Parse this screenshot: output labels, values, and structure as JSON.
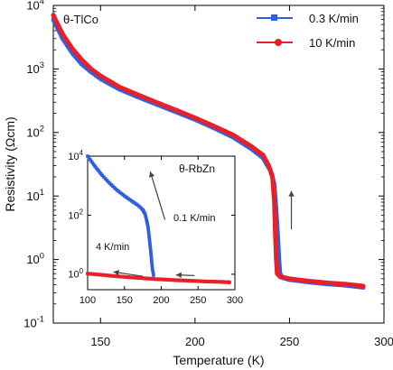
{
  "chart_data": [
    {
      "type": "scatter",
      "title": "θ-TlCo",
      "xlabel": "Temperature (K)",
      "ylabel": "Resistivity (Ωcm)",
      "xlim": [
        125,
        300
      ],
      "ylim": [
        0.1,
        10000
      ],
      "y_scale": "log",
      "grid": false,
      "legend_position": "top-right",
      "x_ticks": [
        150,
        200,
        250,
        300
      ],
      "x_tick_labels": [
        "150",
        "200",
        "250",
        "300"
      ],
      "y_ticks": [
        0.1,
        1,
        10,
        100,
        1000,
        10000
      ],
      "y_tick_labels": [
        {
          "base": "10",
          "exp": "-1"
        },
        {
          "base": "10",
          "exp": "0"
        },
        {
          "base": "10",
          "exp": "1"
        },
        {
          "base": "10",
          "exp": "2"
        },
        {
          "base": "10",
          "exp": "3"
        },
        {
          "base": "10",
          "exp": "4"
        }
      ],
      "annotations": [
        {
          "type": "arrow",
          "direction": "up",
          "from": [
            251,
            3
          ],
          "to": [
            251,
            12
          ]
        }
      ],
      "series": [
        {
          "name": "0.3 K/min",
          "color": "#2f5fe0",
          "marker": "square",
          "points": [
            [
              125,
              6000
            ],
            [
              130,
              3000
            ],
            [
              135,
              1800
            ],
            [
              140,
              1200
            ],
            [
              145,
              900
            ],
            [
              150,
              700
            ],
            [
              160,
              480
            ],
            [
              170,
              360
            ],
            [
              180,
              275
            ],
            [
              190,
              210
            ],
            [
              200,
              160
            ],
            [
              210,
              118
            ],
            [
              220,
              85
            ],
            [
              230,
              55
            ],
            [
              236,
              40
            ],
            [
              240,
              25
            ],
            [
              242,
              15
            ],
            [
              243,
              6
            ],
            [
              244,
              2
            ],
            [
              244.5,
              1
            ],
            [
              245,
              0.6
            ],
            [
              246,
              0.52
            ],
            [
              250,
              0.48
            ],
            [
              260,
              0.44
            ],
            [
              270,
              0.41
            ],
            [
              280,
              0.39
            ],
            [
              290,
              0.36
            ]
          ]
        },
        {
          "name": "10 K/min",
          "color": "#e8202a",
          "marker": "circle",
          "points": [
            [
              125,
              7000
            ],
            [
              130,
              3500
            ],
            [
              135,
              2100
            ],
            [
              140,
              1400
            ],
            [
              145,
              1000
            ],
            [
              150,
              780
            ],
            [
              160,
              520
            ],
            [
              170,
              390
            ],
            [
              180,
              295
            ],
            [
              190,
              225
            ],
            [
              200,
              170
            ],
            [
              210,
              126
            ],
            [
              220,
              92
            ],
            [
              230,
              60
            ],
            [
              236,
              44
            ],
            [
              239,
              30
            ],
            [
              241,
              20
            ],
            [
              242,
              8
            ],
            [
              242.5,
              2.5
            ],
            [
              243,
              1
            ],
            [
              243.5,
              0.6
            ],
            [
              245,
              0.54
            ],
            [
              250,
              0.5
            ],
            [
              260,
              0.46
            ],
            [
              270,
              0.43
            ],
            [
              280,
              0.41
            ],
            [
              290,
              0.38
            ]
          ]
        }
      ]
    },
    {
      "type": "scatter",
      "title": "θ-RbZn",
      "xlabel": "",
      "ylabel": "",
      "xlim": [
        100,
        300
      ],
      "ylim": [
        0.3,
        10000
      ],
      "y_scale": "log",
      "grid": false,
      "x_ticks": [
        100,
        150,
        200,
        250,
        300
      ],
      "x_tick_labels": [
        "100",
        "150",
        "200",
        "250",
        "300"
      ],
      "y_ticks": [
        1,
        100,
        10000
      ],
      "y_tick_labels": [
        {
          "base": "10",
          "exp": "0"
        },
        {
          "base": "10",
          "exp": "2"
        },
        {
          "base": "10",
          "exp": "4"
        }
      ],
      "annotations": [
        {
          "type": "arrow",
          "direction": "up",
          "label": "0.1 K/min",
          "from": [
            205,
            70
          ],
          "to": [
            185,
            3000
          ]
        },
        {
          "type": "arrow",
          "direction": "left",
          "label": "4 K/min",
          "from": [
            175,
            0.85
          ],
          "to": [
            135,
            1.2
          ]
        },
        {
          "type": "arrow",
          "direction": "left",
          "from": [
            245,
            0.9
          ],
          "to": [
            220,
            0.95
          ]
        }
      ],
      "series": [
        {
          "name": "0.1 K/min",
          "color": "#2f5fe0",
          "marker": "square",
          "points": [
            [
              100,
              10000
            ],
            [
              110,
              4500
            ],
            [
              120,
              2200
            ],
            [
              130,
              1200
            ],
            [
              140,
              700
            ],
            [
              150,
              450
            ],
            [
              160,
              300
            ],
            [
              168,
              220
            ],
            [
              172,
              180
            ],
            [
              175,
              150
            ],
            [
              178,
              110
            ],
            [
              180,
              70
            ],
            [
              182,
              40
            ],
            [
              184,
              15
            ],
            [
              186,
              5
            ],
            [
              188,
              1.5
            ],
            [
              190,
              0.8
            ]
          ]
        },
        {
          "name": "4 K/min",
          "color": "#e8202a",
          "marker": "circle",
          "points": [
            [
              100,
              1.05
            ],
            [
              120,
              0.95
            ],
            [
              140,
              0.85
            ],
            [
              160,
              0.78
            ],
            [
              180,
              0.72
            ],
            [
              200,
              0.67
            ],
            [
              220,
              0.63
            ],
            [
              240,
              0.6
            ],
            [
              260,
              0.57
            ],
            [
              280,
              0.55
            ],
            [
              295,
              0.53
            ]
          ]
        }
      ]
    }
  ]
}
